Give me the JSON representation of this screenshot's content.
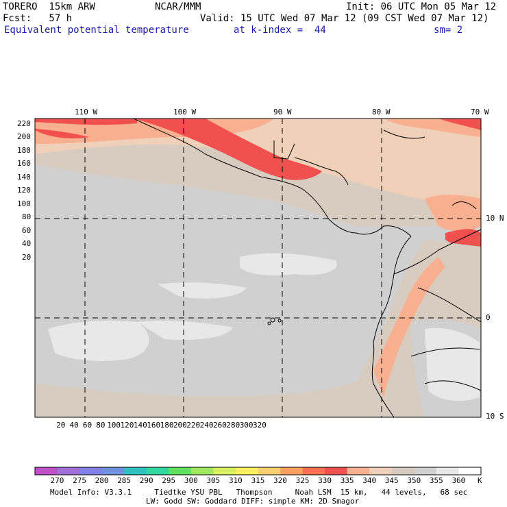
{
  "header": {
    "model": "TORERO  15km ARW",
    "org": "NCAR/MMM",
    "init": "Init: 06 UTC Mon 05 Mar 12",
    "fcst": "Fcst:   57 h",
    "valid": "Valid: 15 UTC Wed 07 Mar 12 (09 CST Wed 07 Mar 12)",
    "field": "Equivalent potential temperature",
    "level": "at k-index =  44",
    "smooth": "sm= 2"
  },
  "axes": {
    "lon_labels": [
      "110 W",
      "100 W",
      "90 W",
      "80 W",
      "70 W"
    ],
    "lat_labels": [
      "10 N",
      "0",
      "10 S"
    ],
    "y_ticks": [
      "220",
      "200",
      "180",
      "160",
      "140",
      "120",
      "100",
      "80",
      "60",
      "40",
      "20"
    ],
    "x_ticks": [
      "20",
      "40",
      "60",
      "80",
      "100",
      "120",
      "140",
      "160",
      "180",
      "200",
      "220",
      "240",
      "260",
      "280",
      "300",
      "320"
    ]
  },
  "colorbar": {
    "levels": [
      "270",
      "275",
      "280",
      "285",
      "290",
      "295",
      "300",
      "305",
      "310",
      "315",
      "320",
      "325",
      "330",
      "335",
      "340",
      "345",
      "350",
      "355",
      "360"
    ],
    "unit": "K",
    "colors": [
      "#c050c8",
      "#a070d8",
      "#8080e8",
      "#7090e0",
      "#30c0c0",
      "#30d8a0",
      "#60e060",
      "#a0e860",
      "#d8f060",
      "#f8f060",
      "#f8d070",
      "#f8a060",
      "#f87050",
      "#f05050",
      "#f8b090",
      "#f0d0b8",
      "#d8ccc0",
      "#d0d0d0",
      "#e8e8e8",
      "#ffffff"
    ]
  },
  "footer": {
    "line1": "Model Info: V3.3.1     Tiedtke YSU PBL   Thompson     Noah LSM  15 km,   44 levels,   68 sec",
    "line2": "LW: Godd SW: Goddard DIFF: simple KM: 2D Smagor"
  }
}
